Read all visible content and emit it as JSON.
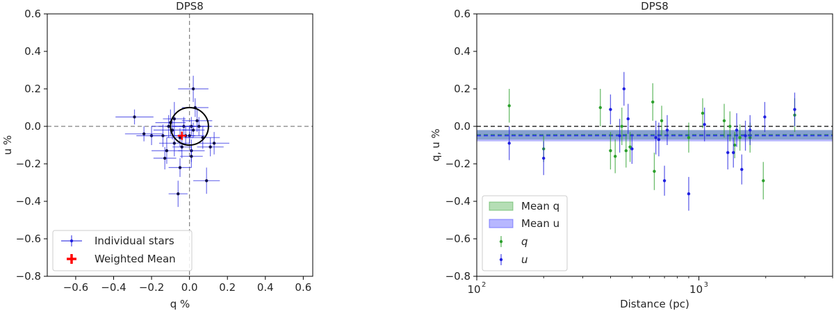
{
  "chart_data": [
    {
      "type": "scatter",
      "title": "DPS8",
      "xlabel": "q %",
      "ylabel": "u %",
      "xlim": [
        -0.75,
        0.65
      ],
      "ylim": [
        -0.8,
        0.6
      ],
      "xticks": [
        "−0.6",
        "−0.4",
        "−0.2",
        "0.0",
        "0.2",
        "0.4",
        "0.6"
      ],
      "yticks": [
        "−0.8",
        "−0.6",
        "−0.4",
        "−0.2",
        "0.0",
        "0.2",
        "0.4",
        "0.6"
      ],
      "xtick_values": [
        -0.6,
        -0.4,
        -0.2,
        0.0,
        0.2,
        0.4,
        0.6
      ],
      "ytick_values": [
        -0.8,
        -0.6,
        -0.4,
        -0.2,
        0.0,
        0.2,
        0.4,
        0.6
      ],
      "grid": false,
      "reference_lines": {
        "x": 0.0,
        "y": 0.0,
        "style": "dashed",
        "color": "#808080"
      },
      "circle": {
        "center": [
          0.0,
          0.0
        ],
        "radius": 0.1,
        "color": "#000000"
      },
      "legend": {
        "location": "lower-left",
        "entries": [
          "Individual stars",
          "Weighted Mean"
        ]
      },
      "series": [
        {
          "name": "Individual stars",
          "color": "#1f1fe0",
          "points": [
            {
              "q": -0.29,
              "u": 0.05,
              "qe": 0.1,
              "ue": 0.04
            },
            {
              "q": -0.24,
              "u": -0.04,
              "qe": 0.1,
              "ue": 0.04
            },
            {
              "q": -0.2,
              "u": -0.05,
              "qe": 0.08,
              "ue": 0.05
            },
            {
              "q": -0.14,
              "u": -0.05,
              "qe": 0.07,
              "ue": 0.06
            },
            {
              "q": -0.13,
              "u": -0.17,
              "qe": 0.06,
              "ue": 0.06
            },
            {
              "q": -0.12,
              "u": -0.13,
              "qe": 0.08,
              "ue": 0.07
            },
            {
              "q": -0.11,
              "u": 0.0,
              "qe": 0.09,
              "ue": 0.06
            },
            {
              "q": -0.1,
              "u": 0.02,
              "qe": 0.08,
              "ue": 0.07
            },
            {
              "q": -0.09,
              "u": -0.02,
              "qe": 0.1,
              "ue": 0.05
            },
            {
              "q": -0.08,
              "u": -0.09,
              "qe": 0.08,
              "ue": 0.07
            },
            {
              "q": -0.08,
              "u": 0.04,
              "qe": 0.06,
              "ue": 0.09
            },
            {
              "q": -0.06,
              "u": -0.36,
              "qe": 0.05,
              "ue": 0.07
            },
            {
              "q": -0.05,
              "u": -0.06,
              "qe": 0.07,
              "ue": 0.05
            },
            {
              "q": -0.05,
              "u": -0.22,
              "qe": 0.06,
              "ue": 0.05
            },
            {
              "q": -0.04,
              "u": -0.11,
              "qe": 0.05,
              "ue": 0.06
            },
            {
              "q": -0.03,
              "u": 0.0,
              "qe": 0.06,
              "ue": 0.05
            },
            {
              "q": -0.02,
              "u": -0.05,
              "qe": 0.05,
              "ue": 0.05
            },
            {
              "q": 0.0,
              "u": -0.05,
              "qe": 0.08,
              "ue": 0.05
            },
            {
              "q": 0.01,
              "u": 0.0,
              "qe": 0.09,
              "ue": 0.05
            },
            {
              "q": 0.01,
              "u": -0.13,
              "qe": 0.07,
              "ue": 0.06
            },
            {
              "q": 0.01,
              "u": -0.16,
              "qe": 0.06,
              "ue": 0.06
            },
            {
              "q": 0.02,
              "u": 0.2,
              "qe": 0.08,
              "ue": 0.07
            },
            {
              "q": 0.02,
              "u": -0.02,
              "qe": 0.06,
              "ue": 0.04
            },
            {
              "q": 0.03,
              "u": 0.1,
              "qe": 0.07,
              "ue": 0.05
            },
            {
              "q": 0.04,
              "u": 0.03,
              "qe": 0.08,
              "ue": 0.06
            },
            {
              "q": 0.05,
              "u": 0.0,
              "qe": 0.07,
              "ue": 0.05
            },
            {
              "q": 0.07,
              "u": -0.06,
              "qe": 0.09,
              "ue": 0.06
            },
            {
              "q": 0.09,
              "u": -0.29,
              "qe": 0.07,
              "ue": 0.07
            },
            {
              "q": 0.11,
              "u": -0.11,
              "qe": 0.07,
              "ue": 0.05
            },
            {
              "q": 0.13,
              "u": -0.09,
              "qe": 0.08,
              "ue": 0.06
            }
          ]
        },
        {
          "name": "Weighted Mean",
          "color": "#ff0000",
          "points": [
            {
              "q": -0.04,
              "u": -0.05,
              "qe": 0.012,
              "ue": 0.012
            }
          ]
        }
      ]
    },
    {
      "type": "scatter",
      "title": "DPS8",
      "xlabel": "Distance (pc)",
      "ylabel": "q, u %",
      "x_scale": "log",
      "xlim": [
        100,
        4000
      ],
      "ylim": [
        -0.8,
        0.6
      ],
      "xticks": [
        "10",
        "10"
      ],
      "xtick_exponents": [
        "2",
        "3"
      ],
      "xtick_values": [
        100,
        1000
      ],
      "yticks": [
        "−0.8",
        "−0.6",
        "−0.4",
        "−0.2",
        "0.0",
        "0.2",
        "0.4",
        "0.6"
      ],
      "ytick_values": [
        -0.8,
        -0.6,
        -0.4,
        -0.2,
        0.0,
        0.2,
        0.4,
        0.6
      ],
      "grid": false,
      "reference_line": {
        "y": 0.0,
        "style": "dashed",
        "color": "#000000"
      },
      "bands": [
        {
          "name": "Mean q",
          "center": -0.045,
          "half_width": 0.025,
          "color": "#2ca02c"
        },
        {
          "name": "Mean u",
          "center": -0.05,
          "half_width": 0.03,
          "color": "#3030ff"
        }
      ],
      "legend": {
        "location": "lower-left",
        "entries": [
          "Mean q",
          "Mean u",
          "q",
          "u"
        ]
      },
      "series": [
        {
          "name": "q",
          "color": "#2ca02c",
          "points": [
            {
              "d": 140,
              "v": 0.11,
              "e": 0.09
            },
            {
              "d": 200,
              "v": -0.12,
              "e": 0.07
            },
            {
              "d": 360,
              "v": 0.1,
              "e": 0.1
            },
            {
              "d": 400,
              "v": -0.13,
              "e": 0.1
            },
            {
              "d": 420,
              "v": -0.16,
              "e": 0.09
            },
            {
              "d": 450,
              "v": 0.0,
              "e": 0.1
            },
            {
              "d": 470,
              "v": -0.13,
              "e": 0.09
            },
            {
              "d": 490,
              "v": -0.11,
              "e": 0.08
            },
            {
              "d": 620,
              "v": 0.13,
              "e": 0.1
            },
            {
              "d": 630,
              "v": -0.24,
              "e": 0.1
            },
            {
              "d": 680,
              "v": 0.03,
              "e": 0.08
            },
            {
              "d": 900,
              "v": -0.06,
              "e": 0.08
            },
            {
              "d": 1040,
              "v": 0.07,
              "e": 0.08
            },
            {
              "d": 1300,
              "v": 0.03,
              "e": 0.09
            },
            {
              "d": 1380,
              "v": 0.0,
              "e": 0.08
            },
            {
              "d": 1450,
              "v": -0.1,
              "e": 0.07
            },
            {
              "d": 1530,
              "v": -0.06,
              "e": 0.07
            },
            {
              "d": 1700,
              "v": -0.06,
              "e": 0.08
            },
            {
              "d": 1950,
              "v": -0.29,
              "e": 0.1
            },
            {
              "d": 2700,
              "v": 0.06,
              "e": 0.09
            }
          ]
        },
        {
          "name": "u",
          "color": "#1f1fe0",
          "points": [
            {
              "d": 140,
              "v": -0.09,
              "e": 0.09
            },
            {
              "d": 200,
              "v": -0.17,
              "e": 0.09
            },
            {
              "d": 400,
              "v": 0.09,
              "e": 0.08
            },
            {
              "d": 440,
              "v": -0.05,
              "e": 0.09
            },
            {
              "d": 460,
              "v": 0.2,
              "e": 0.09
            },
            {
              "d": 480,
              "v": 0.04,
              "e": 0.08
            },
            {
              "d": 500,
              "v": -0.12,
              "e": 0.08
            },
            {
              "d": 640,
              "v": -0.06,
              "e": 0.09
            },
            {
              "d": 660,
              "v": -0.07,
              "e": 0.09
            },
            {
              "d": 700,
              "v": -0.29,
              "e": 0.08
            },
            {
              "d": 720,
              "v": -0.02,
              "e": 0.08
            },
            {
              "d": 900,
              "v": -0.36,
              "e": 0.09
            },
            {
              "d": 1060,
              "v": 0.01,
              "e": 0.09
            },
            {
              "d": 1350,
              "v": -0.14,
              "e": 0.09
            },
            {
              "d": 1430,
              "v": -0.14,
              "e": 0.08
            },
            {
              "d": 1480,
              "v": -0.02,
              "e": 0.09
            },
            {
              "d": 1560,
              "v": -0.23,
              "e": 0.08
            },
            {
              "d": 1620,
              "v": -0.05,
              "e": 0.08
            },
            {
              "d": 1700,
              "v": -0.02,
              "e": 0.08
            },
            {
              "d": 1980,
              "v": 0.05,
              "e": 0.08
            },
            {
              "d": 2700,
              "v": 0.09,
              "e": 0.09
            }
          ]
        }
      ]
    }
  ]
}
